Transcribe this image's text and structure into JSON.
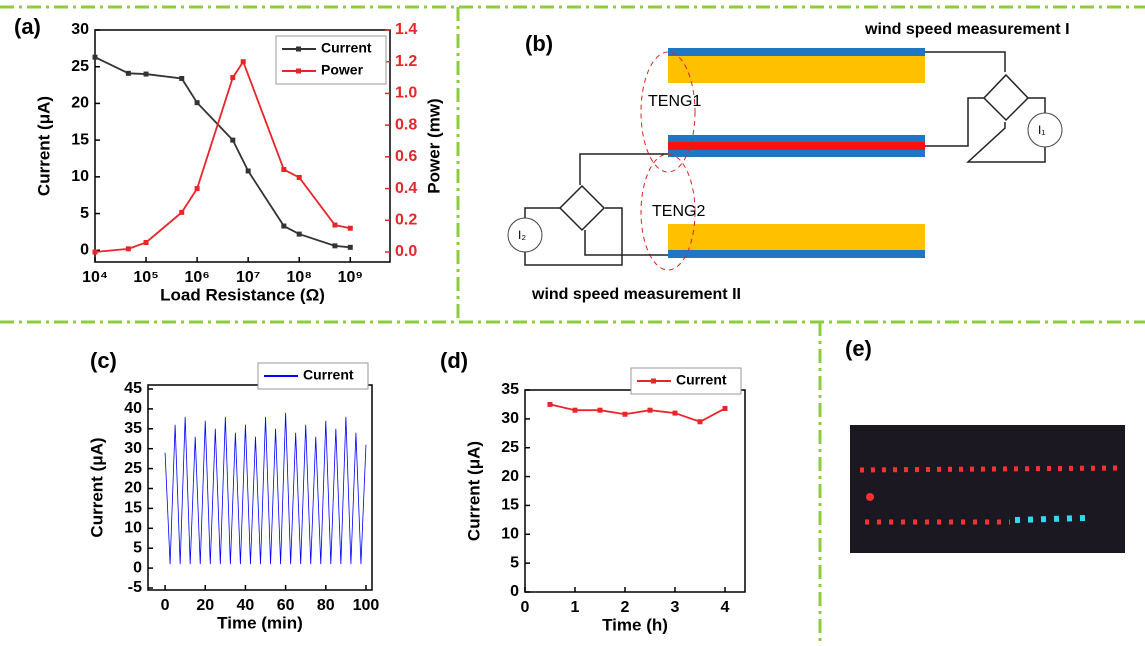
{
  "chart_data": [
    {
      "type": "line",
      "panel": "(a)",
      "xlabel": "Load Resistance (Ω)",
      "ylabel": "Current (μA)",
      "y2label": "Power (mw)",
      "xlog": true,
      "xlim": [
        10000,
        6000000000
      ],
      "ylim": [
        -1.6,
        30
      ],
      "y2lim": [
        -0.063,
        1.4
      ],
      "xticks": [
        {
          "value": 10000,
          "label": "10⁴"
        },
        {
          "value": 100000,
          "label": "10⁵"
        },
        {
          "value": 1000000,
          "label": "10⁶"
        },
        {
          "value": 10000000,
          "label": "10⁷"
        },
        {
          "value": 100000000,
          "label": "10⁸"
        },
        {
          "value": 1000000000,
          "label": "10⁹"
        }
      ],
      "yticks": [
        0,
        5,
        10,
        15,
        20,
        25,
        30
      ],
      "y2ticks": [
        {
          "value": 0,
          "label": "0.0"
        },
        0.2,
        0.4,
        0.6,
        0.8,
        {
          "value": 1,
          "label": "1.0"
        },
        1.2,
        1.4
      ],
      "legend": "upper right",
      "series": [
        {
          "name": "Current",
          "color": "#333333",
          "marker": "square",
          "x": [
            10000,
            45000,
            100000,
            500000,
            1000000,
            5000000,
            10000000,
            50000000,
            100000000,
            500000000,
            1000000000
          ],
          "values": [
            26.3,
            24.1,
            24,
            23.4,
            20.1,
            15,
            10.8,
            3.3,
            2.2,
            0.6,
            0.4
          ]
        },
        {
          "name": "Power",
          "color": "#e8262a",
          "marker": "square",
          "axis": "y2",
          "x": [
            10000,
            45000,
            100000,
            500000,
            1000000,
            5000000,
            8000000,
            50000000,
            100000000,
            500000000,
            1000000000
          ],
          "values": [
            0,
            0.02,
            0.06,
            0.25,
            0.4,
            1.1,
            1.2,
            0.52,
            0.47,
            0.17,
            0.15
          ]
        }
      ]
    },
    {
      "type": "line",
      "panel": "(c)",
      "xlabel": "Time (min)",
      "ylabel": "Current (μA)",
      "xlim": [
        -8.5,
        103
      ],
      "ylim": [
        -5.5,
        46
      ],
      "xticks": [
        0,
        20,
        40,
        60,
        80,
        100
      ],
      "yticks": [
        -5,
        0,
        5,
        10,
        15,
        20,
        25,
        30,
        35,
        40,
        45
      ],
      "legend": "upper right",
      "series": [
        {
          "name": "Current",
          "color": "#0000ff",
          "x": [
            0,
            2.5,
            5,
            7.5,
            10,
            12.5,
            15,
            17.5,
            20,
            22.5,
            25,
            27.5,
            30,
            32.5,
            35,
            37.5,
            40,
            42.5,
            45,
            47.5,
            50,
            52.5,
            55,
            57.5,
            60,
            62.5,
            65,
            67.5,
            70,
            72.5,
            75,
            77.5,
            80,
            82.5,
            85,
            87.5,
            90,
            92.5,
            95,
            97.5,
            100
          ],
          "values": [
            29,
            1,
            36,
            1,
            38,
            1,
            33,
            1,
            37,
            1,
            35,
            1,
            38,
            1,
            34,
            1,
            36,
            1,
            33,
            1,
            38,
            1,
            35,
            1,
            39,
            1,
            34,
            1,
            36,
            1,
            33,
            1,
            37,
            1,
            35,
            1,
            38,
            1,
            34,
            1,
            31
          ]
        }
      ]
    },
    {
      "type": "line",
      "panel": "(d)",
      "xlabel": "Time (h)",
      "ylabel": "Current (μA)",
      "xlim": [
        0,
        4.4
      ],
      "ylim": [
        0,
        35
      ],
      "xticks": [
        0,
        1,
        2,
        3,
        4
      ],
      "yticks": [
        0,
        5,
        10,
        15,
        20,
        25,
        30,
        35
      ],
      "legend": "upper right",
      "series": [
        {
          "name": "Current",
          "color": "#e8262a",
          "marker": "square",
          "x": [
            0.5,
            1,
            1.5,
            2,
            2.5,
            3,
            3.5,
            4
          ],
          "values": [
            32.5,
            31.5,
            31.5,
            30.8,
            31.5,
            31,
            29.5,
            31.8
          ]
        }
      ]
    }
  ],
  "diagram": {
    "panel": "(b)",
    "top_label": "wind speed measurement I",
    "bottom_label": "wind  speed  measurement II",
    "teng1": "TENG1",
    "teng2": "TENG2",
    "meter1": "I₁",
    "meter2": "I₂"
  },
  "photo": {
    "panel": "(e)"
  }
}
